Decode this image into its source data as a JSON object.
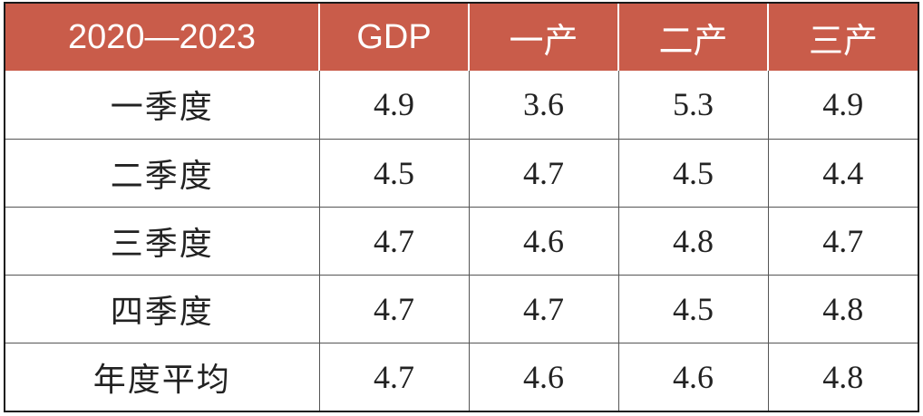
{
  "table": {
    "header": [
      "2020—2023",
      "GDP",
      "一产",
      "二产",
      "三产"
    ],
    "rows": [
      {
        "label": "一季度",
        "values": [
          "4.9",
          "3.6",
          "5.3",
          "4.9"
        ]
      },
      {
        "label": "二季度",
        "values": [
          "4.5",
          "4.7",
          "4.5",
          "4.4"
        ]
      },
      {
        "label": "三季度",
        "values": [
          "4.7",
          "4.6",
          "4.8",
          "4.7"
        ]
      },
      {
        "label": "四季度",
        "values": [
          "4.7",
          "4.7",
          "4.5",
          "4.8"
        ]
      },
      {
        "label": "年度平均",
        "values": [
          "4.7",
          "4.6",
          "4.6",
          "4.8"
        ]
      }
    ]
  },
  "colors": {
    "header_bg": "#c95c4a",
    "header_text": "#ffffff",
    "body_text": "#222222",
    "grid": "#555555"
  }
}
